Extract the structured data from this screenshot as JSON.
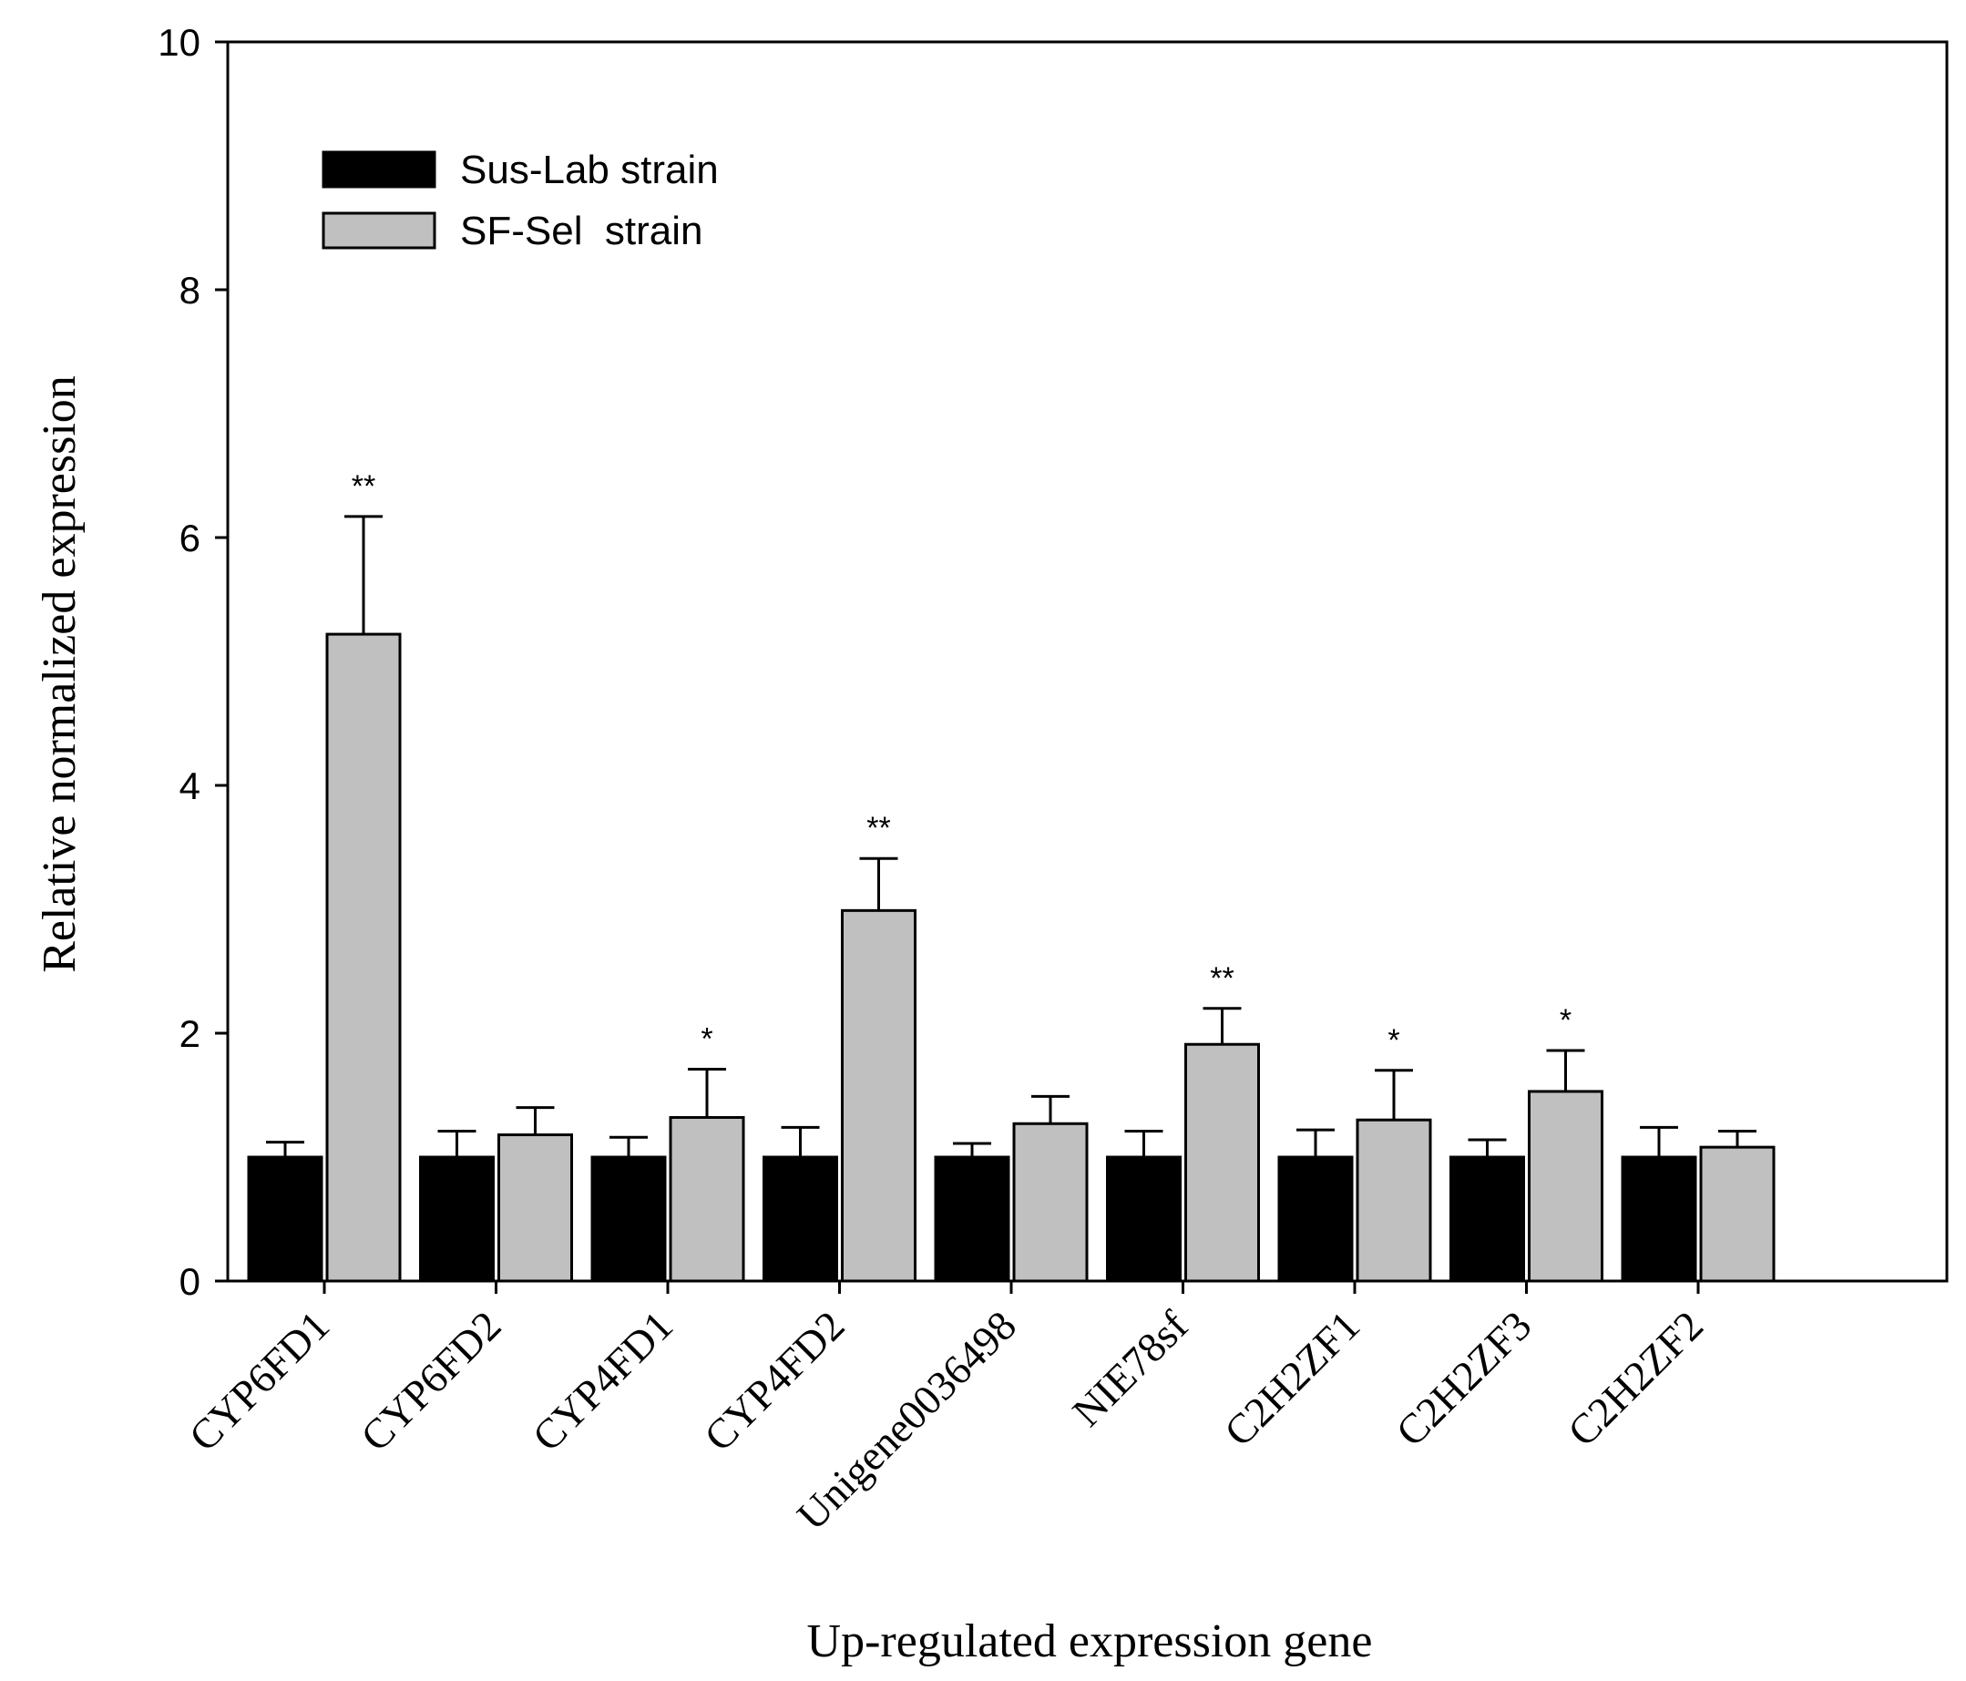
{
  "chart_data": {
    "type": "bar",
    "title": "",
    "xlabel": "Up-regulated expression gene",
    "ylabel": "Relative normalized expression",
    "ylim": [
      0,
      10
    ],
    "yticks": [
      0,
      2,
      4,
      6,
      8,
      10
    ],
    "categories": [
      "CYP6FD1",
      "CYP6FD2",
      "CYP4FD1",
      "CYP4FD2",
      "Unigene0036498",
      "NIE78sf",
      "C2H2ZF1",
      "C2H2ZF3",
      "C2H2ZF2"
    ],
    "series": [
      {
        "name": "Sus-Lab strain",
        "color": "#000000",
        "values": [
          1.0,
          1.0,
          1.0,
          1.0,
          1.0,
          1.0,
          1.0,
          1.0,
          1.0
        ],
        "errors": [
          0.12,
          0.21,
          0.16,
          0.24,
          0.11,
          0.21,
          0.22,
          0.14,
          0.24
        ]
      },
      {
        "name": "SF-Sel  strain",
        "color": "#c0c0c0",
        "values": [
          5.22,
          1.18,
          1.32,
          2.99,
          1.27,
          1.91,
          1.3,
          1.53,
          1.08
        ],
        "errors": [
          0.95,
          0.22,
          0.39,
          0.42,
          0.22,
          0.29,
          0.4,
          0.33,
          0.13
        ]
      }
    ],
    "significance": [
      "**",
      "",
      "*",
      "**",
      "",
      "**",
      "*",
      "*",
      ""
    ],
    "legend_position": "top-left",
    "grid": false
  }
}
